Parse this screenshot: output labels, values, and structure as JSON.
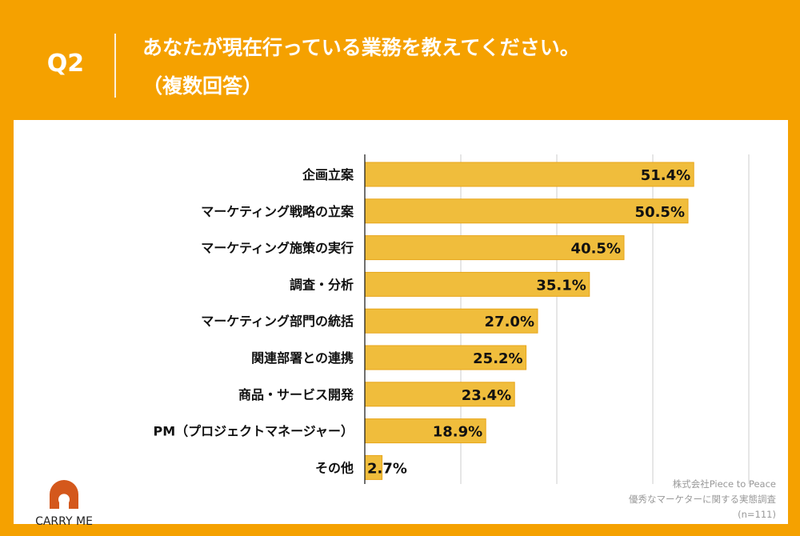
{
  "header": {
    "q": "Q2",
    "title_line1": "あなたが現在行っている業務を教えてください。",
    "title_line2": "（複数回答）"
  },
  "colors": {
    "background": "#f5a100",
    "bar": "#f0bd3c",
    "bar_edge": "#e8a51a",
    "logo": "#d4581c"
  },
  "chart_data": {
    "type": "bar",
    "orientation": "horizontal",
    "categories": [
      "企画立案",
      "マーケティング戦略の立案",
      "マーケティング施策の実行",
      "調査・分析",
      "マーケティング部門の統括",
      "関連部署との連携",
      "商品・サービス開発",
      "PM（プロジェクトマネージャー）",
      "その他"
    ],
    "values": [
      51.4,
      50.5,
      40.5,
      35.1,
      27.0,
      25.2,
      23.4,
      18.9,
      2.7
    ],
    "labels": [
      "51.4%",
      "50.5%",
      "40.5%",
      "35.1%",
      "27.0%",
      "25.2%",
      "23.4%",
      "18.9%",
      "2.7%"
    ],
    "xlim": [
      0,
      60
    ],
    "grid": true,
    "grid_step": 15,
    "legend": "none"
  },
  "logo": {
    "text": "CARRY ME"
  },
  "note": {
    "line1": "株式会社Piece to Peace",
    "line2": "優秀なマーケターに関する実態調査",
    "line3": "(n=111)"
  }
}
